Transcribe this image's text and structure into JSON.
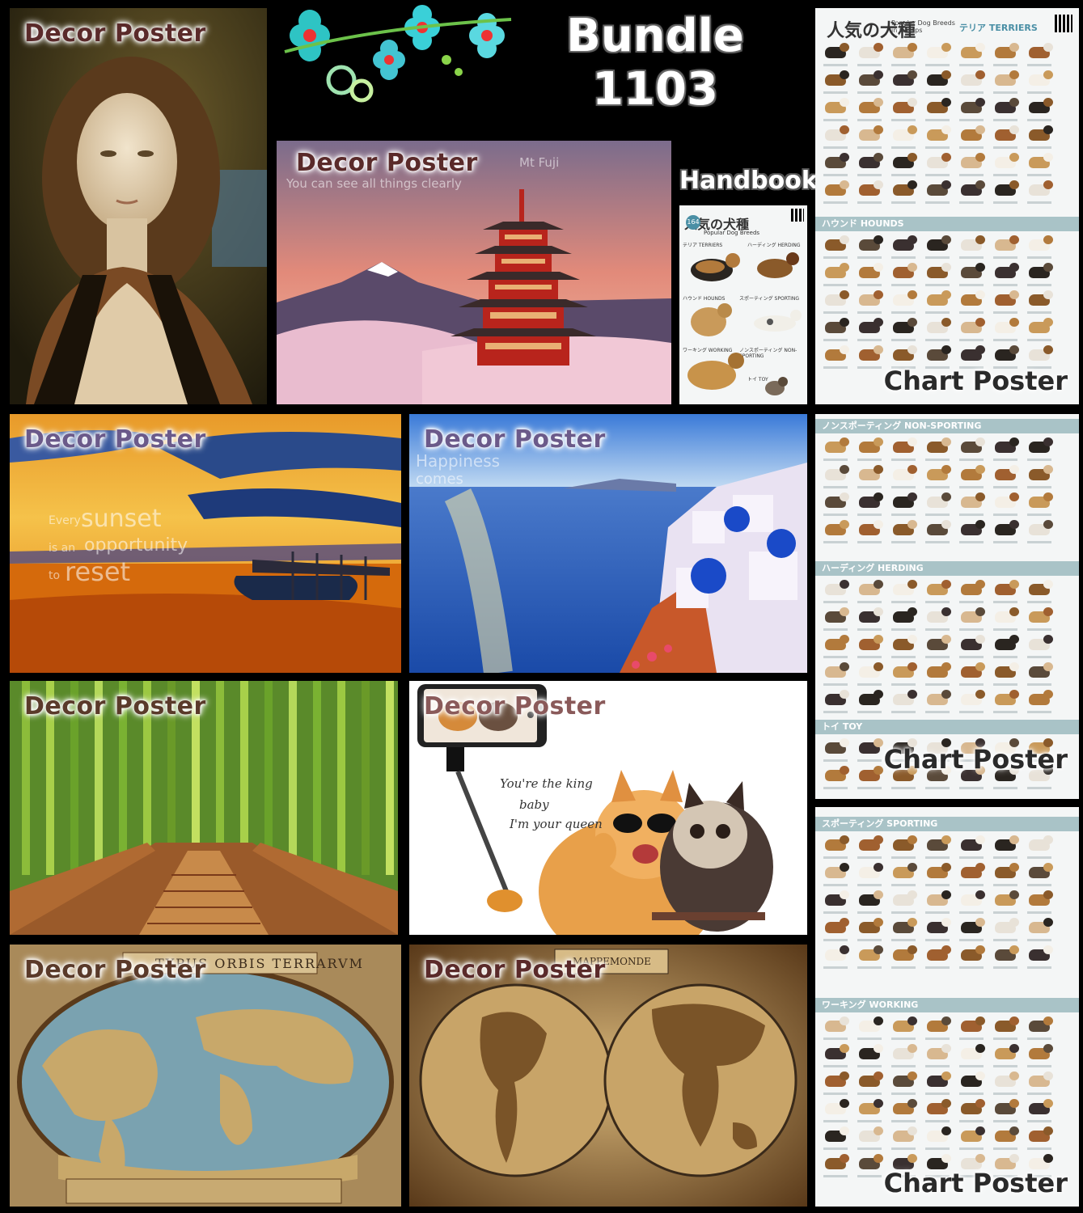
{
  "bundle": {
    "line1": "Bundle",
    "line2": "1103"
  },
  "labels": {
    "decor": "Decor Poster",
    "chart": "Chart Poster",
    "handbook": "Handbook"
  },
  "fuji": {
    "line1": "Mt Fuji",
    "line2": "You can see all things clearly"
  },
  "sunset": {
    "w1": "Every",
    "w2": "sunset",
    "w3": "is an",
    "w4": "opportunity",
    "w5": "to",
    "w6": "reset"
  },
  "santorini": {
    "line1": "Happiness",
    "line2": "comes"
  },
  "cats": {
    "line1": "You're the king",
    "line2": "baby",
    "line3": "I'm your queen"
  },
  "map1": {
    "title": "TYPUS ORBIS TERRARVM"
  },
  "map2": {
    "title": "MAPPEMONDE"
  },
  "dogchart": {
    "title_jp": "人気の犬種",
    "title_en1": "Popular Dog Breeds",
    "title_en2": "in Groups",
    "count": "164",
    "groups": {
      "terriers": "テリア TERRIERS",
      "hounds": "ハウンド HOUNDS",
      "nonsporting": "ノンスポーティング NON-SPORTING",
      "herding": "ハーディング HERDING",
      "toy": "トイ TOY",
      "sporting": "スポーティング SPORTING",
      "working": "ワーキング WORKING"
    },
    "handbook_groups": {
      "terriers": "テリア TERRIERS",
      "herding": "ハーディング HERDING",
      "hounds": "ハウンド HOUNDS",
      "sporting": "スポーティング SPORTING",
      "working": "ワーキング WORKING",
      "nonsporting": "ノンスポーティング NON-SPORTING",
      "toy": "トイ TOY"
    }
  },
  "colors": {
    "accent": "#a9c3c7",
    "label": "#5a2a2a"
  }
}
